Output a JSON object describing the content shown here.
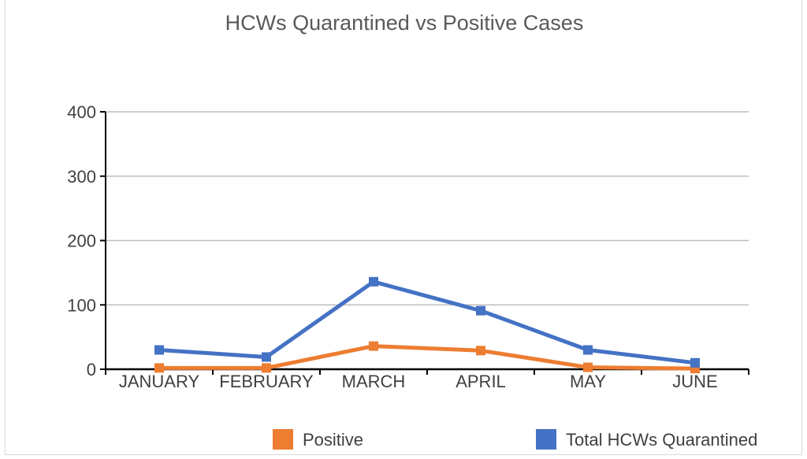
{
  "chart_data": {
    "type": "line",
    "title": "HCWs Quarantined vs Positive Cases",
    "categories": [
      "JANUARY",
      "FEBRUARY",
      "MARCH",
      "APRIL",
      "MAY",
      "JUNE"
    ],
    "series": [
      {
        "name": "Positive",
        "color": "#ed7d31",
        "values": [
          2,
          2,
          36,
          29,
          3,
          1
        ]
      },
      {
        "name": "Total HCWs Quarantined",
        "color": "#4472c4",
        "values": [
          30,
          19,
          136,
          91,
          30,
          10
        ]
      }
    ],
    "ylim": [
      0,
      400
    ],
    "yticks": [
      0,
      100,
      200,
      300,
      400
    ],
    "grid": true,
    "legend": "bottom"
  }
}
